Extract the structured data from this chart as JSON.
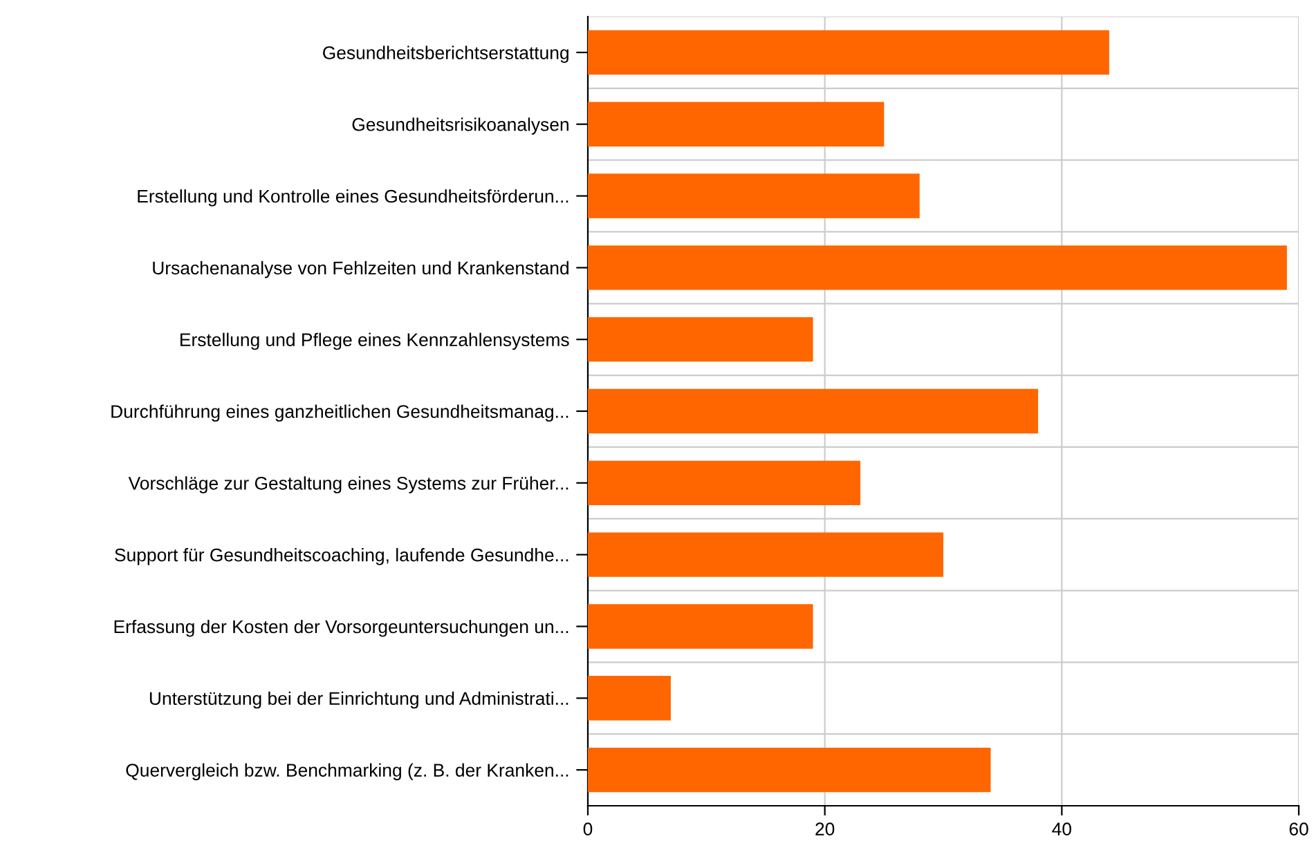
{
  "chart_data": {
    "type": "bar",
    "orientation": "horizontal",
    "categories": [
      "Gesundheitsberichtserstattung",
      "Gesundheitsrisikoanalysen",
      "Erstellung und Kontrolle eines Gesundheitsförderun...",
      "Ursachenanalyse von Fehlzeiten und Krankenstand",
      "Erstellung und Pflege eines Kennzahlensystems",
      "Durchführung eines ganzheitlichen Gesundheitsmanag...",
      "Vorschläge zur Gestaltung eines Systems zur Früher...",
      "Support für Gesundheitscoaching, laufende Gesundhe...",
      "Erfassung der Kosten der Vorsorgeuntersuchungen un...",
      "Unterstützung bei der Einrichtung und Administrati...",
      "Quervergleich bzw. Benchmarking (z. B. der Kranken..."
    ],
    "values": [
      44,
      25,
      28,
      59,
      19,
      38,
      23,
      30,
      19,
      7,
      34
    ],
    "color": "#ff6600",
    "xlim": [
      0,
      60
    ],
    "xticks": [
      0,
      20,
      40,
      60
    ],
    "grid": true
  }
}
